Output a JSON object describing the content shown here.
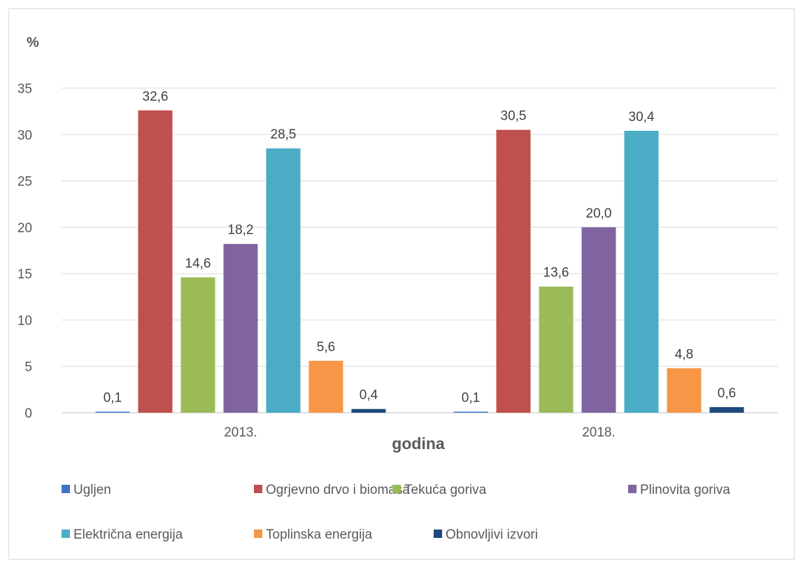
{
  "chart_data": {
    "type": "bar",
    "ylabel": "%",
    "xlabel": "godina",
    "categories": [
      "2013.",
      "2018."
    ],
    "ylim": [
      0,
      35
    ],
    "yticks": [
      0,
      5,
      10,
      15,
      20,
      25,
      30,
      35
    ],
    "grid": true,
    "legend_position": "bottom",
    "series": [
      {
        "name": "Ugljen",
        "color": "#4472c4",
        "values": [
          0.1,
          0.1
        ],
        "labels": [
          "0,1",
          "0,1"
        ]
      },
      {
        "name": "Ogrjevno drvo i biomasa",
        "color": "#c0504d",
        "values": [
          32.6,
          30.5
        ],
        "labels": [
          "32,6",
          "30,5"
        ]
      },
      {
        "name": "Tekuća goriva",
        "color": "#9bbb59",
        "values": [
          14.6,
          13.6
        ],
        "labels": [
          "14,6",
          "13,6"
        ]
      },
      {
        "name": "Plinovita goriva",
        "color": "#8064a2",
        "values": [
          18.2,
          20.0
        ],
        "labels": [
          "18,2",
          "20,0"
        ]
      },
      {
        "name": "Električna energija",
        "color": "#4bacc6",
        "values": [
          28.5,
          30.4
        ],
        "labels": [
          "28,5",
          "30,4"
        ]
      },
      {
        "name": "Toplinska energija",
        "color": "#f79646",
        "values": [
          5.6,
          4.8
        ],
        "labels": [
          "5,6",
          "4,8"
        ]
      },
      {
        "name": "Obnovljivi izvori",
        "color": "#1f497d",
        "values": [
          0.4,
          0.6
        ],
        "labels": [
          "0,4",
          "0,6"
        ]
      }
    ]
  }
}
